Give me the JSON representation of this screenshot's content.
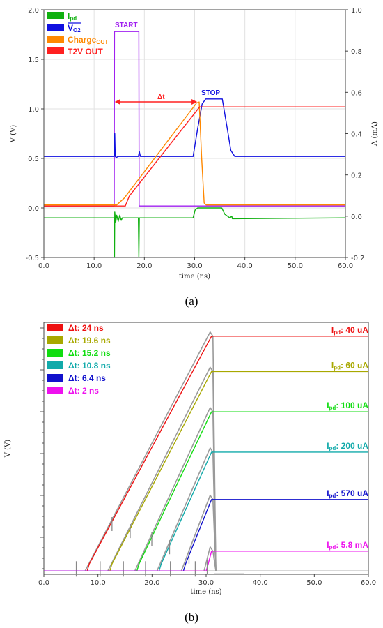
{
  "panel_a_label": "(a)",
  "panel_b_label": "(b)",
  "chart_data": [
    {
      "type": "line",
      "panel": "(a)",
      "xlabel": "time (ns)",
      "ylabel": "V (V)",
      "y2label": "A (mA)",
      "xlim": [
        0,
        60
      ],
      "ylim": [
        -0.5,
        2.0
      ],
      "y2lim": [
        -0.2,
        1.0
      ],
      "x_ticks": [
        "0.0",
        "10.0",
        "20.0",
        "30.0",
        "40.0",
        "50.0",
        "60.0"
      ],
      "y_ticks": [
        "-0.5",
        "0.0",
        "0.5",
        "1.0",
        "1.5",
        "2.0"
      ],
      "y2_ticks": [
        "-0.2",
        "0.0",
        "0.2",
        "0.4",
        "0.6",
        "0.8",
        "1.0"
      ],
      "grid": true,
      "legend_position": "top-left",
      "legend": [
        {
          "main": "I",
          "sub": "pd",
          "color": "#10b010"
        },
        {
          "main": "V",
          "sub": "O2",
          "overline": true,
          "color": "#1010e0"
        },
        {
          "main": "Charge",
          "sub": "OUT",
          "color": "#ff8800"
        },
        {
          "main": "T2V OUT",
          "sub": "",
          "color": "#ff2020"
        }
      ],
      "annotations": {
        "start": "START",
        "stop": "STOP",
        "delta": "Δt"
      },
      "series": [
        {
          "name": "START pulse",
          "color": "#a020f0",
          "points": [
            [
              0,
              0.02
            ],
            [
              14.0,
              0.02
            ],
            [
              14.05,
              1.78
            ],
            [
              18.9,
              1.78
            ],
            [
              18.95,
              0.02
            ],
            [
              60,
              0.02
            ]
          ]
        },
        {
          "name": "V_O2 (STOP)",
          "color": "#1010e0",
          "points": [
            [
              0,
              0.52
            ],
            [
              14.0,
              0.52
            ],
            [
              14.1,
              0.75
            ],
            [
              14.2,
              0.52
            ],
            [
              14.4,
              0.51
            ],
            [
              14.8,
              0.52
            ],
            [
              18.8,
              0.52
            ],
            [
              19.0,
              0.57
            ],
            [
              19.2,
              0.52
            ],
            [
              29.7,
              0.52
            ],
            [
              30.6,
              0.8
            ],
            [
              31.5,
              1.05
            ],
            [
              32.2,
              1.1
            ],
            [
              35.5,
              1.1
            ],
            [
              36.5,
              0.8
            ],
            [
              37.2,
              0.58
            ],
            [
              38.0,
              0.52
            ],
            [
              60,
              0.52
            ]
          ]
        },
        {
          "name": "Charge_OUT",
          "color": "#ff8800",
          "points": [
            [
              0,
              0.03
            ],
            [
              14.5,
              0.03
            ],
            [
              16.0,
              0.1
            ],
            [
              30.4,
              1.06
            ],
            [
              30.9,
              1.07
            ],
            [
              31.4,
              0.5
            ],
            [
              31.9,
              0.05
            ],
            [
              32.3,
              0.03
            ],
            [
              60,
              0.03
            ]
          ]
        },
        {
          "name": "T2V OUT",
          "color": "#ff2020",
          "points": [
            [
              0,
              0.02
            ],
            [
              16.2,
              0.02
            ],
            [
              17.0,
              0.12
            ],
            [
              31.0,
              1.02
            ],
            [
              31.5,
              1.02
            ],
            [
              60,
              1.02
            ]
          ]
        },
        {
          "name": "I_pd",
          "color": "#10b010",
          "axis": "right",
          "points": [
            [
              0,
              -0.008
            ],
            [
              14.0,
              -0.008
            ],
            [
              14.05,
              -0.2
            ],
            [
              14.1,
              0.02
            ],
            [
              14.3,
              -0.03
            ],
            [
              14.5,
              0.005
            ],
            [
              14.8,
              -0.025
            ],
            [
              15.1,
              0.005
            ],
            [
              15.4,
              -0.02
            ],
            [
              15.6,
              -0.008
            ],
            [
              18.8,
              -0.008
            ],
            [
              18.9,
              -0.2
            ],
            [
              19.0,
              -0.008
            ],
            [
              29.7,
              -0.008
            ],
            [
              30.1,
              0.03
            ],
            [
              30.6,
              0.04
            ],
            [
              35.4,
              0.04
            ],
            [
              36.0,
              0.01
            ],
            [
              37.0,
              -0.008
            ],
            [
              37.4,
              -0.0
            ],
            [
              37.5,
              -0.012
            ],
            [
              60,
              -0.008
            ]
          ]
        }
      ]
    },
    {
      "type": "line",
      "panel": "(b)",
      "xlabel": "time (ns)",
      "ylabel": "V (V)",
      "xlim": [
        0,
        60
      ],
      "x_ticks": [
        "0.0",
        "10.0",
        "20.0",
        "30.0",
        "40.0",
        "50.0",
        "60.0"
      ],
      "grid": false,
      "legend_position": "top-left",
      "series": [
        {
          "delta_label": "Δt:  24  ns",
          "ipd_main": "I",
          "ipd_sub": "pd",
          "ipd_value": ": 40  uA",
          "color": "#ee1111",
          "start": 8.0,
          "end": 31.0,
          "level": 0.945
        },
        {
          "delta_label": "Δt: 19.6 ns",
          "ipd_main": "I",
          "ipd_sub": "pd",
          "ipd_value": ":  60  uA",
          "color": "#a8a800",
          "start": 12.2,
          "end": 31.0,
          "level": 0.805
        },
        {
          "delta_label": "Δt: 15.2 ns",
          "ipd_main": "I",
          "ipd_sub": "pd",
          "ipd_value": ": 100 uA",
          "color": "#11dd11",
          "start": 17.2,
          "end": 31.0,
          "level": 0.645
        },
        {
          "delta_label": "Δt: 10.8 ns",
          "ipd_main": "I",
          "ipd_sub": "pd",
          "ipd_value": ": 200 uA",
          "color": "#11aaaa",
          "start": 21.3,
          "end": 31.0,
          "level": 0.485
        },
        {
          "delta_label": "Δt:  6.4  ns",
          "ipd_main": "I",
          "ipd_sub": "pd",
          "ipd_value": ": 570 uA",
          "color": "#1111cc",
          "start": 25.8,
          "end": 31.0,
          "level": 0.297
        },
        {
          "delta_label": "Δt:   2    ns",
          "ipd_main": "I",
          "ipd_sub": "pd",
          "ipd_value": ": 5.8 mA",
          "color": "#ee11ee",
          "start": 30.0,
          "end": 31.0,
          "level": 0.092
        }
      ],
      "start_markers": [
        6.0,
        10.4,
        14.7,
        18.8,
        23.4,
        28.0
      ]
    }
  ]
}
